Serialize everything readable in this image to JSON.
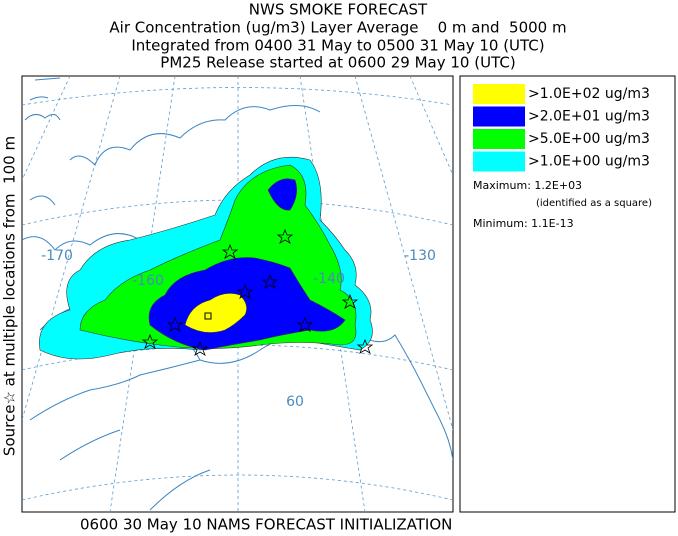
{
  "header": {
    "lines": [
      "NWS SMOKE FORECAST",
      "Air Concentration (ug/m3) Layer Average    0 m and  5000 m",
      "Integrated from 0400 31 May to 0500 31 May 10 (UTC)",
      "PM25 Release started at 0600 29 May 10 (UTC)"
    ]
  },
  "side_label": "Source☆ at multiple locations from  100 m",
  "map": {
    "labels": [
      "-170",
      "-160",
      "-140",
      "-130",
      "60"
    ]
  },
  "legend": {
    "items": [
      {
        "label": ">1.0E+02 ug/m3",
        "color": "#ffff00"
      },
      {
        "label": ">2.0E+01 ug/m3",
        "color": "#0000ff"
      },
      {
        "label": ">5.0E+00 ug/m3",
        "color": "#00ff00"
      },
      {
        "label": ">1.0E+00 ug/m3",
        "color": "#00ffff"
      }
    ],
    "maximum": "Maximum: 1.2E+03",
    "maximum_note": "(identified as a square)",
    "minimum": "Minimum: 1.1E-13"
  },
  "footer": "0600 30 May 10 NAMS FORECAST INITIALIZATION"
}
